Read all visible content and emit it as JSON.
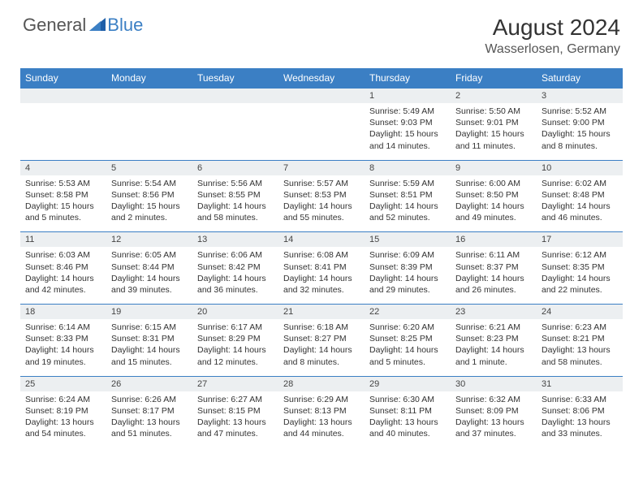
{
  "brand": {
    "part1": "General",
    "part2": "Blue",
    "logo_color": "#3b7fc4"
  },
  "title": "August 2024",
  "location": "Wasserlosen, Germany",
  "header_bg": "#3b7fc4",
  "header_text_color": "#ffffff",
  "daynum_bg": "#eceff1",
  "border_color": "#3b7fc4",
  "days_of_week": [
    "Sunday",
    "Monday",
    "Tuesday",
    "Wednesday",
    "Thursday",
    "Friday",
    "Saturday"
  ],
  "weeks": [
    [
      null,
      null,
      null,
      null,
      {
        "n": "1",
        "sr": "Sunrise: 5:49 AM",
        "ss": "Sunset: 9:03 PM",
        "dl": "Daylight: 15 hours and 14 minutes."
      },
      {
        "n": "2",
        "sr": "Sunrise: 5:50 AM",
        "ss": "Sunset: 9:01 PM",
        "dl": "Daylight: 15 hours and 11 minutes."
      },
      {
        "n": "3",
        "sr": "Sunrise: 5:52 AM",
        "ss": "Sunset: 9:00 PM",
        "dl": "Daylight: 15 hours and 8 minutes."
      }
    ],
    [
      {
        "n": "4",
        "sr": "Sunrise: 5:53 AM",
        "ss": "Sunset: 8:58 PM",
        "dl": "Daylight: 15 hours and 5 minutes."
      },
      {
        "n": "5",
        "sr": "Sunrise: 5:54 AM",
        "ss": "Sunset: 8:56 PM",
        "dl": "Daylight: 15 hours and 2 minutes."
      },
      {
        "n": "6",
        "sr": "Sunrise: 5:56 AM",
        "ss": "Sunset: 8:55 PM",
        "dl": "Daylight: 14 hours and 58 minutes."
      },
      {
        "n": "7",
        "sr": "Sunrise: 5:57 AM",
        "ss": "Sunset: 8:53 PM",
        "dl": "Daylight: 14 hours and 55 minutes."
      },
      {
        "n": "8",
        "sr": "Sunrise: 5:59 AM",
        "ss": "Sunset: 8:51 PM",
        "dl": "Daylight: 14 hours and 52 minutes."
      },
      {
        "n": "9",
        "sr": "Sunrise: 6:00 AM",
        "ss": "Sunset: 8:50 PM",
        "dl": "Daylight: 14 hours and 49 minutes."
      },
      {
        "n": "10",
        "sr": "Sunrise: 6:02 AM",
        "ss": "Sunset: 8:48 PM",
        "dl": "Daylight: 14 hours and 46 minutes."
      }
    ],
    [
      {
        "n": "11",
        "sr": "Sunrise: 6:03 AM",
        "ss": "Sunset: 8:46 PM",
        "dl": "Daylight: 14 hours and 42 minutes."
      },
      {
        "n": "12",
        "sr": "Sunrise: 6:05 AM",
        "ss": "Sunset: 8:44 PM",
        "dl": "Daylight: 14 hours and 39 minutes."
      },
      {
        "n": "13",
        "sr": "Sunrise: 6:06 AM",
        "ss": "Sunset: 8:42 PM",
        "dl": "Daylight: 14 hours and 36 minutes."
      },
      {
        "n": "14",
        "sr": "Sunrise: 6:08 AM",
        "ss": "Sunset: 8:41 PM",
        "dl": "Daylight: 14 hours and 32 minutes."
      },
      {
        "n": "15",
        "sr": "Sunrise: 6:09 AM",
        "ss": "Sunset: 8:39 PM",
        "dl": "Daylight: 14 hours and 29 minutes."
      },
      {
        "n": "16",
        "sr": "Sunrise: 6:11 AM",
        "ss": "Sunset: 8:37 PM",
        "dl": "Daylight: 14 hours and 26 minutes."
      },
      {
        "n": "17",
        "sr": "Sunrise: 6:12 AM",
        "ss": "Sunset: 8:35 PM",
        "dl": "Daylight: 14 hours and 22 minutes."
      }
    ],
    [
      {
        "n": "18",
        "sr": "Sunrise: 6:14 AM",
        "ss": "Sunset: 8:33 PM",
        "dl": "Daylight: 14 hours and 19 minutes."
      },
      {
        "n": "19",
        "sr": "Sunrise: 6:15 AM",
        "ss": "Sunset: 8:31 PM",
        "dl": "Daylight: 14 hours and 15 minutes."
      },
      {
        "n": "20",
        "sr": "Sunrise: 6:17 AM",
        "ss": "Sunset: 8:29 PM",
        "dl": "Daylight: 14 hours and 12 minutes."
      },
      {
        "n": "21",
        "sr": "Sunrise: 6:18 AM",
        "ss": "Sunset: 8:27 PM",
        "dl": "Daylight: 14 hours and 8 minutes."
      },
      {
        "n": "22",
        "sr": "Sunrise: 6:20 AM",
        "ss": "Sunset: 8:25 PM",
        "dl": "Daylight: 14 hours and 5 minutes."
      },
      {
        "n": "23",
        "sr": "Sunrise: 6:21 AM",
        "ss": "Sunset: 8:23 PM",
        "dl": "Daylight: 14 hours and 1 minute."
      },
      {
        "n": "24",
        "sr": "Sunrise: 6:23 AM",
        "ss": "Sunset: 8:21 PM",
        "dl": "Daylight: 13 hours and 58 minutes."
      }
    ],
    [
      {
        "n": "25",
        "sr": "Sunrise: 6:24 AM",
        "ss": "Sunset: 8:19 PM",
        "dl": "Daylight: 13 hours and 54 minutes."
      },
      {
        "n": "26",
        "sr": "Sunrise: 6:26 AM",
        "ss": "Sunset: 8:17 PM",
        "dl": "Daylight: 13 hours and 51 minutes."
      },
      {
        "n": "27",
        "sr": "Sunrise: 6:27 AM",
        "ss": "Sunset: 8:15 PM",
        "dl": "Daylight: 13 hours and 47 minutes."
      },
      {
        "n": "28",
        "sr": "Sunrise: 6:29 AM",
        "ss": "Sunset: 8:13 PM",
        "dl": "Daylight: 13 hours and 44 minutes."
      },
      {
        "n": "29",
        "sr": "Sunrise: 6:30 AM",
        "ss": "Sunset: 8:11 PM",
        "dl": "Daylight: 13 hours and 40 minutes."
      },
      {
        "n": "30",
        "sr": "Sunrise: 6:32 AM",
        "ss": "Sunset: 8:09 PM",
        "dl": "Daylight: 13 hours and 37 minutes."
      },
      {
        "n": "31",
        "sr": "Sunrise: 6:33 AM",
        "ss": "Sunset: 8:06 PM",
        "dl": "Daylight: 13 hours and 33 minutes."
      }
    ]
  ]
}
